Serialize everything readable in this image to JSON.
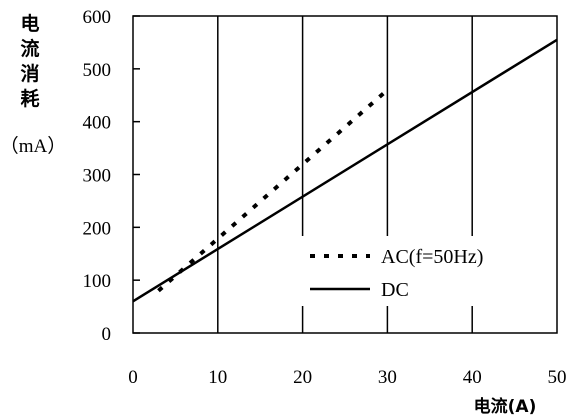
{
  "chart_data": {
    "type": "line",
    "ylabel_chars": [
      "电",
      "流",
      "消",
      "耗"
    ],
    "ylabel_unit": "（mA）",
    "xlabel": "电流(A)",
    "xlim": [
      0,
      50
    ],
    "ylim": [
      0,
      600
    ],
    "x_ticks": [
      0,
      10,
      20,
      30,
      40,
      50
    ],
    "y_ticks": [
      0,
      100,
      200,
      300,
      400,
      500,
      600
    ],
    "grid": "vertical",
    "legend_position": "lower-right",
    "series": [
      {
        "name": "AC(f=50Hz)",
        "style": "dotted",
        "color": "#000000",
        "x": [
          3,
          30
        ],
        "y": [
          80,
          460
        ]
      },
      {
        "name": "DC",
        "style": "solid",
        "color": "#000000",
        "x": [
          0,
          50
        ],
        "y": [
          60,
          555
        ]
      }
    ]
  }
}
